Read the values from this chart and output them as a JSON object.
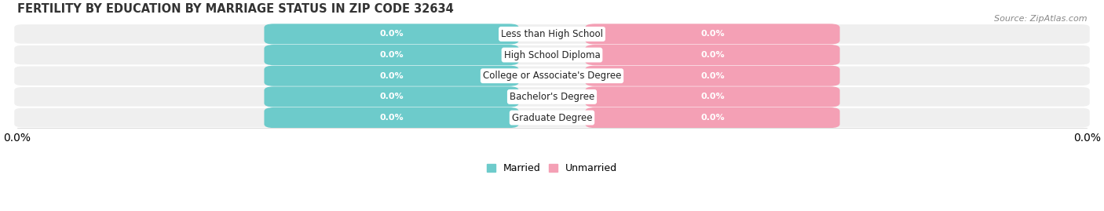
{
  "title": "FERTILITY BY EDUCATION BY MARRIAGE STATUS IN ZIP CODE 32634",
  "source": "Source: ZipAtlas.com",
  "categories": [
    "Less than High School",
    "High School Diploma",
    "College or Associate's Degree",
    "Bachelor's Degree",
    "Graduate Degree"
  ],
  "married_values": [
    0.0,
    0.0,
    0.0,
    0.0,
    0.0
  ],
  "unmarried_values": [
    0.0,
    0.0,
    0.0,
    0.0,
    0.0
  ],
  "married_color": "#6dcbcb",
  "unmarried_color": "#f4a0b5",
  "row_bg_color": "#efefef",
  "fig_bg_color": "#ffffff",
  "title_fontsize": 10.5,
  "source_fontsize": 8,
  "cat_fontsize": 8.5,
  "value_fontsize": 8,
  "legend_fontsize": 9,
  "axis_label_fontsize": 8.5
}
